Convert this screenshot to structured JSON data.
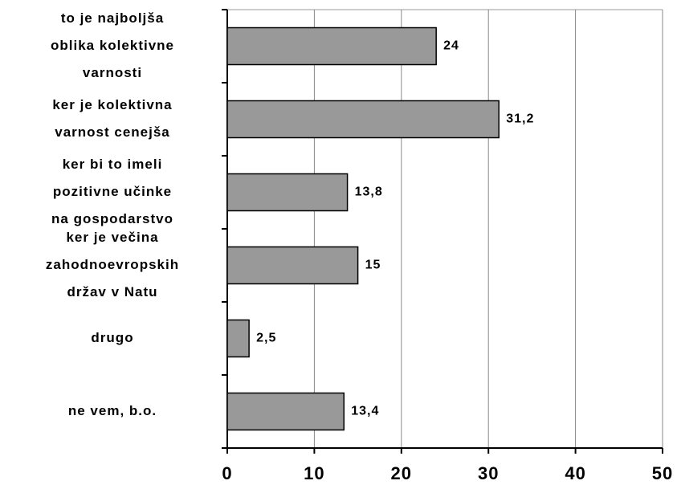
{
  "chart_data": {
    "type": "bar",
    "orientation": "horizontal",
    "categories": [
      [
        "to je najboljša",
        "oblika kolektivne",
        "varnosti"
      ],
      [
        "ker je kolektivna",
        "varnost cenejša"
      ],
      [
        "ker bi to imeli",
        "pozitivne učinke",
        "na  gospodarstvo"
      ],
      [
        "ker je večina",
        "zahodnoevropskih",
        "držav v Natu"
      ],
      [
        "drugo"
      ],
      [
        "ne vem, b.o."
      ]
    ],
    "values": [
      24,
      31.2,
      13.8,
      15,
      2.5,
      13.4
    ],
    "value_labels": [
      "24",
      "31,2",
      "13,8",
      "15",
      "2,5",
      "13,4"
    ],
    "color": "#999999",
    "xlim": [
      0,
      50
    ],
    "xticks": [
      0,
      10,
      20,
      30,
      40,
      50
    ],
    "grid": true
  }
}
